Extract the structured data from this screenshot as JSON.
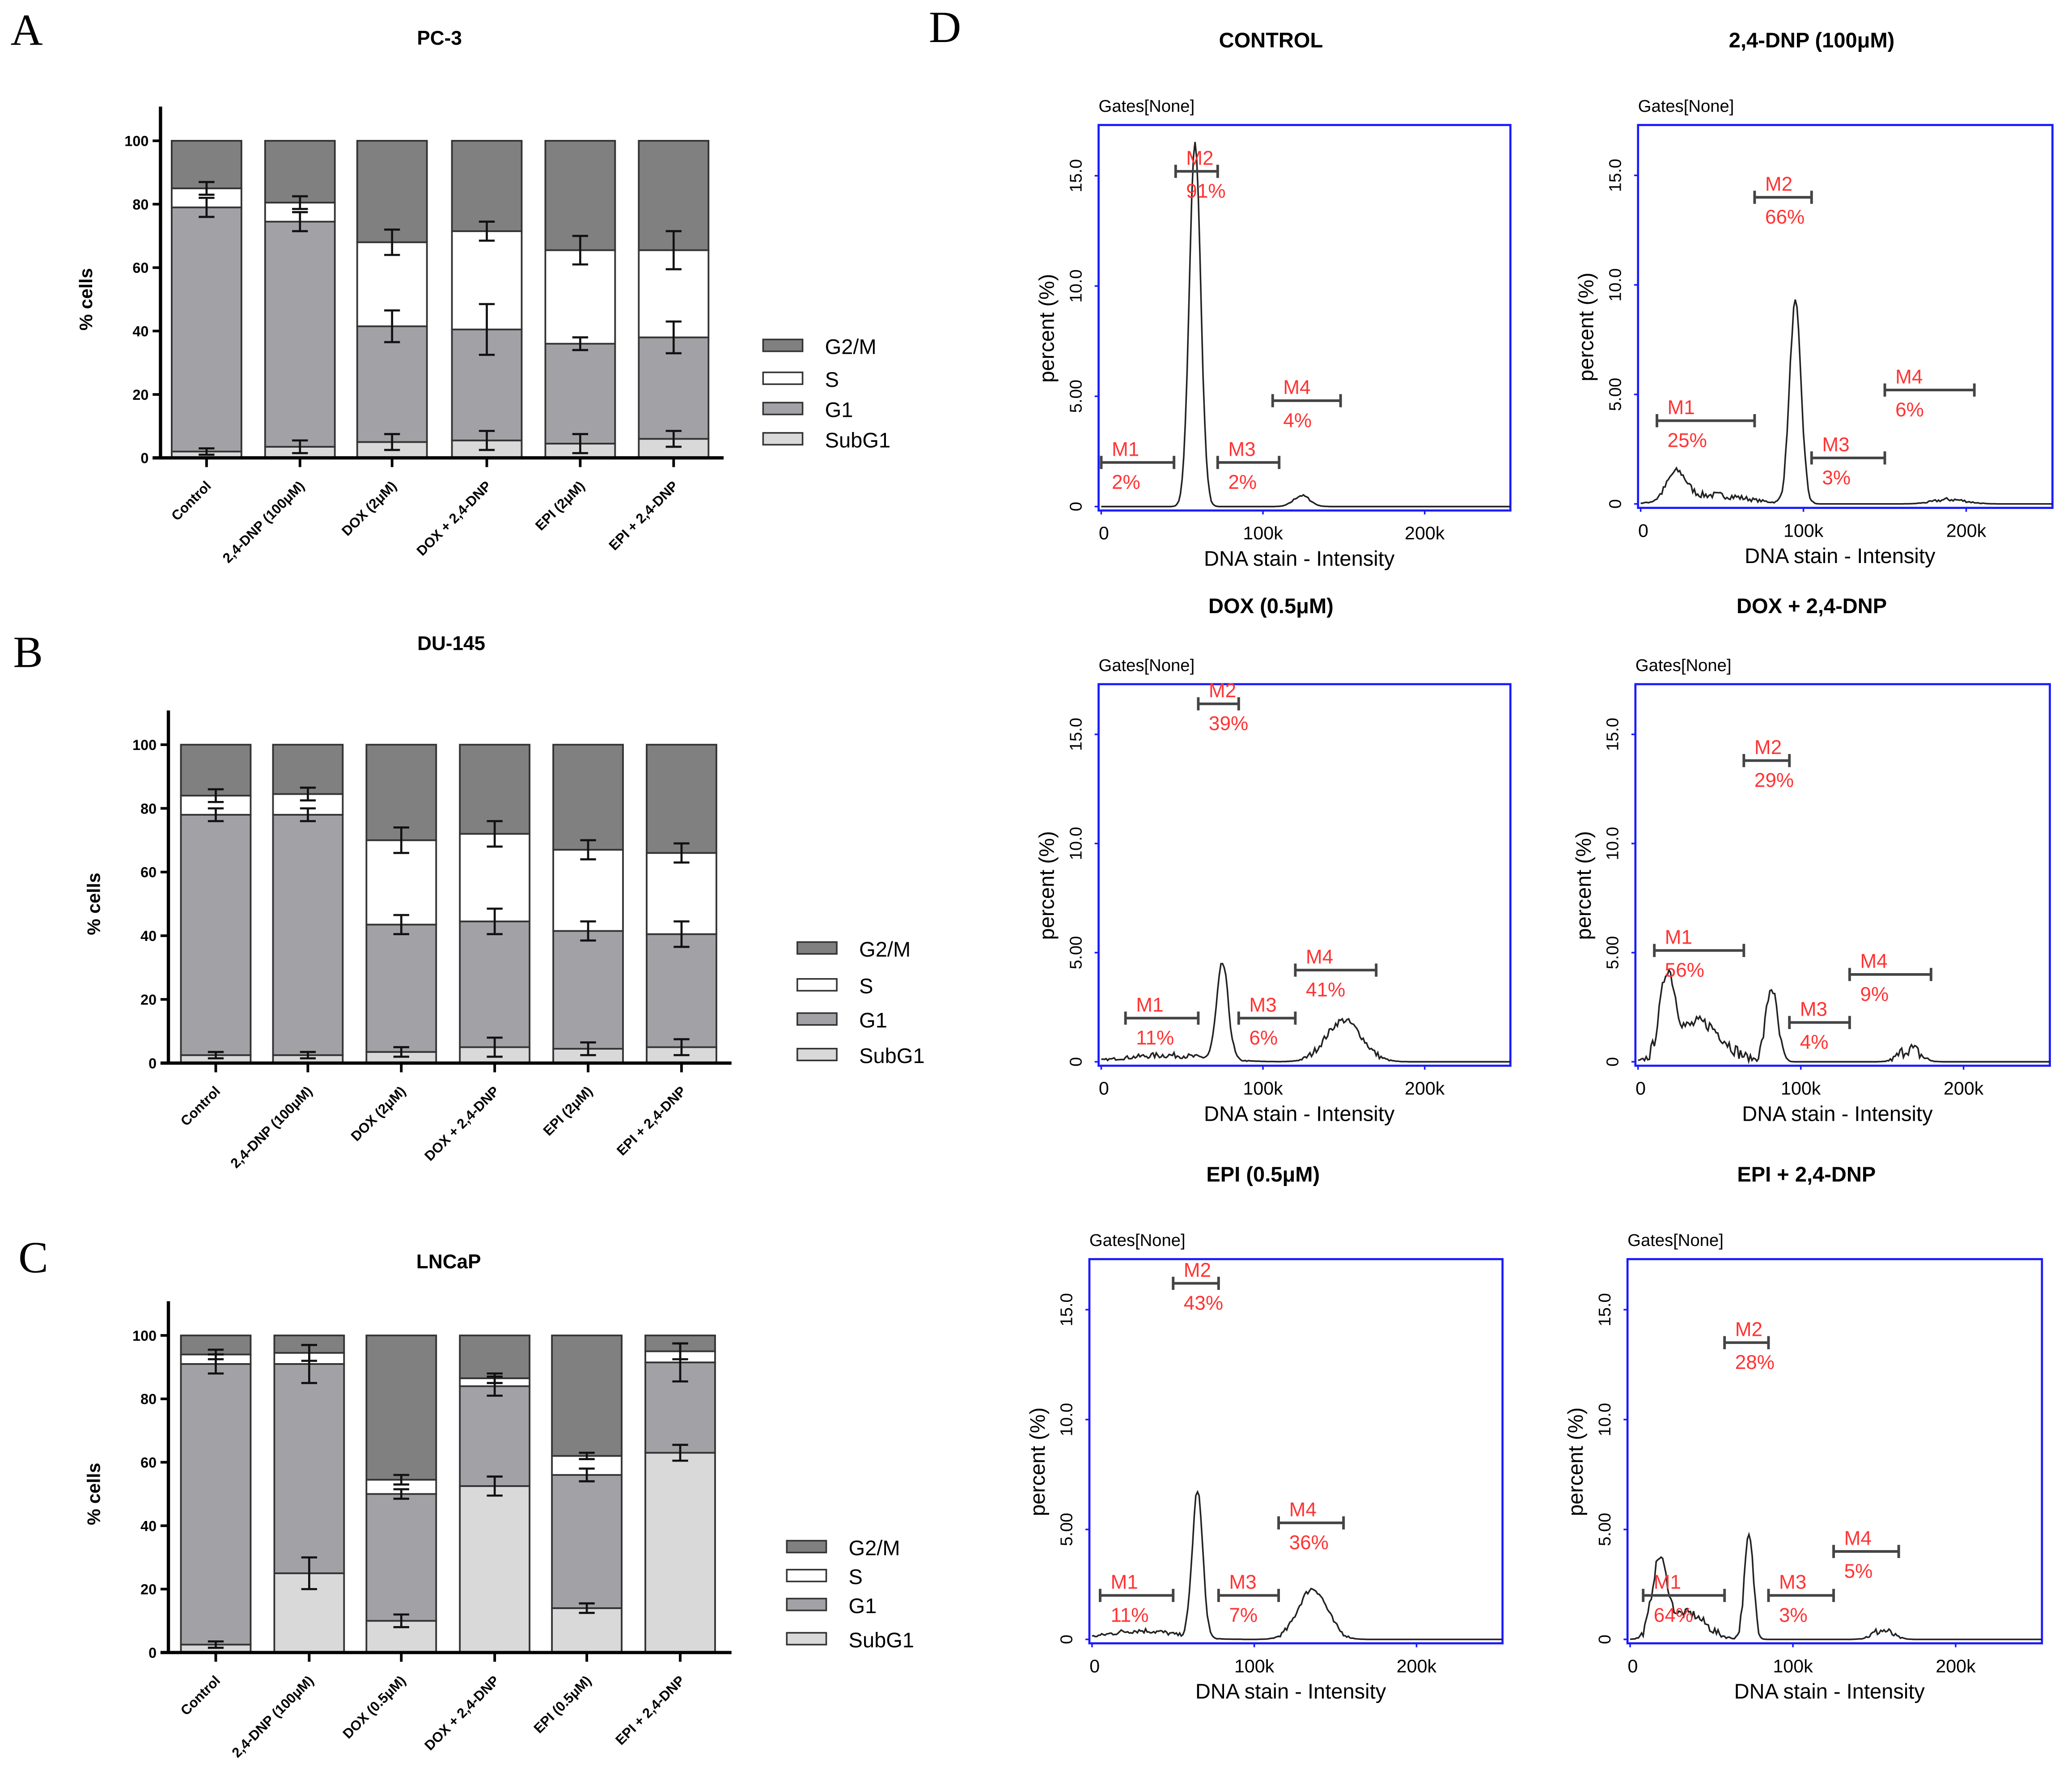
{
  "panel_letters": [
    "A",
    "B",
    "C",
    "D"
  ],
  "colors": {
    "G2/M": "#808080",
    "S": "#ffffff",
    "G1": "#a2a2a6",
    "SubG1": "#d9d9d9",
    "gate_text": "#ff3333",
    "frame": "#1a1aff"
  },
  "chart_data": [
    {
      "type": "bar",
      "stacked": true,
      "title": "PC-3",
      "ylabel": "% cells",
      "xlabel": "",
      "ylim": [
        0,
        100
      ],
      "yticks": [
        0,
        20,
        40,
        60,
        80,
        100
      ],
      "legend_position": "right",
      "legend": [
        "G2/M",
        "S",
        "G1",
        "SubG1"
      ],
      "categories": [
        "Control",
        "2,4-DNP (100μM)",
        "DOX (2μM)",
        "DOX + 2,4-DNP",
        "EPI (2μM)",
        "EPI + 2,4-DNP"
      ],
      "series": [
        {
          "name": "SubG1",
          "values": [
            2,
            3.5,
            5,
            5.5,
            4.5,
            6
          ],
          "errors": [
            1,
            2,
            2.5,
            3,
            3,
            2.5
          ]
        },
        {
          "name": "G1",
          "values": [
            77,
            71,
            36.5,
            35,
            31.5,
            32
          ],
          "errors": [
            3,
            3,
            5,
            8,
            2,
            5
          ]
        },
        {
          "name": "S",
          "values": [
            6,
            6,
            26.5,
            31,
            29.5,
            27.5
          ],
          "errors": [
            2,
            2,
            4,
            3,
            4.5,
            6
          ]
        },
        {
          "name": "G2/M",
          "values": [
            15,
            19.5,
            32,
            28.5,
            34.5,
            34.5
          ]
        }
      ]
    },
    {
      "type": "bar",
      "stacked": true,
      "title": "DU-145",
      "ylabel": "% cells",
      "xlabel": "",
      "ylim": [
        0,
        100
      ],
      "yticks": [
        0,
        20,
        40,
        60,
        80,
        100
      ],
      "legend_position": "right",
      "legend": [
        "G2/M",
        "S",
        "G1",
        "SubG1"
      ],
      "categories": [
        "Control",
        "2,4-DNP (100μM)",
        "DOX (2μM)",
        "DOX + 2,4-DNP",
        "EPI (2μM)",
        "EPI + 2,4-DNP"
      ],
      "series": [
        {
          "name": "SubG1",
          "values": [
            2.5,
            2.5,
            3.5,
            5,
            4.5,
            5
          ],
          "errors": [
            1,
            1,
            1.5,
            3,
            2,
            2.5
          ]
        },
        {
          "name": "G1",
          "values": [
            75.5,
            75.5,
            40,
            39.5,
            37,
            35.5
          ],
          "errors": [
            2,
            2,
            3,
            4,
            3,
            4
          ]
        },
        {
          "name": "S",
          "values": [
            6,
            6.5,
            26.5,
            27.5,
            25.5,
            25.5
          ],
          "errors": [
            2,
            2,
            4,
            4,
            3,
            3
          ]
        },
        {
          "name": "G2/M",
          "values": [
            16,
            15.5,
            30,
            28,
            33,
            34
          ]
        }
      ]
    },
    {
      "type": "bar",
      "stacked": true,
      "title": "LNCaP",
      "ylabel": "% cells",
      "xlabel": "",
      "ylim": [
        0,
        100
      ],
      "yticks": [
        0,
        20,
        40,
        60,
        80,
        100
      ],
      "legend_position": "right",
      "legend": [
        "G2/M",
        "S",
        "G1",
        "SubG1"
      ],
      "categories": [
        "Control",
        "2,4-DNP (100μM)",
        "DOX (0.5μM)",
        "DOX + 2,4-DNP",
        "EPI (0.5μM)",
        "EPI + 2,4-DNP"
      ],
      "series": [
        {
          "name": "SubG1",
          "values": [
            2.5,
            25,
            10,
            52.5,
            14,
            63
          ],
          "errors": [
            1,
            5,
            2,
            3,
            1.5,
            2.5
          ]
        },
        {
          "name": "G1",
          "values": [
            88.5,
            66,
            40,
            31.5,
            42,
            28.5
          ],
          "errors": [
            3,
            6,
            1.5,
            3,
            2,
            6
          ]
        },
        {
          "name": "S",
          "values": [
            3,
            3.5,
            4.5,
            2.5,
            6,
            3.5
          ],
          "errors": [
            1.5,
            2.5,
            1.5,
            1.5,
            1,
            2.5
          ]
        },
        {
          "name": "G2/M",
          "values": [
            6,
            5.5,
            45.5,
            13.5,
            38,
            5
          ]
        }
      ]
    },
    {
      "type": "line",
      "kind": "histogram-grid",
      "gates_header": "Gates[None]",
      "xlabel": "DNA stain - Intensity",
      "ylabel": "percent (%)",
      "xticks": [
        "0",
        "100k",
        "200k"
      ],
      "yticks": [
        "0",
        "5.00",
        "10.0",
        "15.0"
      ],
      "xlim_k": [
        0,
        253
      ],
      "ylim": [
        0,
        17.3
      ],
      "panels": [
        {
          "title": "CONTROL",
          "peaks": [
            [
              58,
              16.5,
              3.5
            ],
            [
              124,
              0.5,
              5
            ]
          ],
          "noise": 0.05,
          "gates": [
            {
              "name": "M1",
              "range_k": [
                0,
                45
              ],
              "level": 2.0,
              "pct": "2%"
            },
            {
              "name": "M2",
              "range_k": [
                46,
                72
              ],
              "level": 15.2,
              "pct": "91%"
            },
            {
              "name": "M3",
              "range_k": [
                72,
                110
              ],
              "level": 2.0,
              "pct": "2%"
            },
            {
              "name": "M4",
              "range_k": [
                106,
                148
              ],
              "level": 4.8,
              "pct": "4%"
            }
          ]
        },
        {
          "title": "2,4-DNP (100μM)",
          "peaks": [
            [
              22,
              1.3,
              6
            ],
            [
              45,
              0.4,
              20
            ],
            [
              95,
              9.2,
              3.5
            ],
            [
              190,
              0.2,
              10
            ]
          ],
          "noise": 0.15,
          "gates": [
            {
              "name": "M1",
              "range_k": [
                10,
                70
              ],
              "level": 3.8,
              "pct": "25%"
            },
            {
              "name": "M2",
              "range_k": [
                70,
                105
              ],
              "level": 14.0,
              "pct": "66%"
            },
            {
              "name": "M3",
              "range_k": [
                105,
                150
              ],
              "level": 2.1,
              "pct": "3%"
            },
            {
              "name": "M4",
              "range_k": [
                150,
                205
              ],
              "level": 5.2,
              "pct": "6%"
            }
          ]
        },
        {
          "title": "DOX (0.5μM)",
          "peaks": [
            [
              75,
              4.4,
              3.5
            ],
            [
              150,
              1.9,
              11
            ],
            [
              40,
              0.3,
              25
            ]
          ],
          "noise": 0.15,
          "gates": [
            {
              "name": "M1",
              "range_k": [
                15,
                60
              ],
              "level": 2.0,
              "pct": "11%"
            },
            {
              "name": "M2",
              "range_k": [
                60,
                85
              ],
              "level": 16.4,
              "pct": "39%"
            },
            {
              "name": "M3",
              "range_k": [
                85,
                120
              ],
              "level": 2.0,
              "pct": "6%"
            },
            {
              "name": "M4",
              "range_k": [
                120,
                170
              ],
              "level": 4.2,
              "pct": "41%"
            }
          ]
        },
        {
          "title": "DOX + 2,4-DNP",
          "peaks": [
            [
              18,
              3.6,
              4.5
            ],
            [
              38,
              1.8,
              14
            ],
            [
              82,
              3.4,
              3.5
            ],
            [
              167,
              0.6,
              6
            ]
          ],
          "noise": 0.3,
          "gates": [
            {
              "name": "M1",
              "range_k": [
                10,
                65
              ],
              "level": 5.1,
              "pct": "56%"
            },
            {
              "name": "M2",
              "range_k": [
                65,
                93
              ],
              "level": 13.8,
              "pct": "29%"
            },
            {
              "name": "M3",
              "range_k": [
                93,
                130
              ],
              "level": 1.8,
              "pct": "4%"
            },
            {
              "name": "M4",
              "range_k": [
                130,
                180
              ],
              "level": 4.0,
              "pct": "9%"
            }
          ]
        },
        {
          "title": "EPI (0.5μM)",
          "peaks": [
            [
              65,
              6.7,
              3.2
            ],
            [
              136,
              2.3,
              9
            ],
            [
              30,
              0.4,
              20
            ]
          ],
          "noise": 0.12,
          "gates": [
            {
              "name": "M1",
              "range_k": [
                5,
                50
              ],
              "level": 2.0,
              "pct": "11%"
            },
            {
              "name": "M2",
              "range_k": [
                50,
                78
              ],
              "level": 16.2,
              "pct": "43%"
            },
            {
              "name": "M3",
              "range_k": [
                78,
                115
              ],
              "level": 2.0,
              "pct": "7%"
            },
            {
              "name": "M4",
              "range_k": [
                115,
                155
              ],
              "level": 5.3,
              "pct": "36%"
            }
          ]
        },
        {
          "title": "EPI + 2,4-DNP",
          "peaks": [
            [
              18,
              3.4,
              4.5
            ],
            [
              35,
              1.2,
              11
            ],
            [
              73,
              4.7,
              2.8
            ],
            [
              155,
              0.4,
              6
            ]
          ],
          "noise": 0.2,
          "gates": [
            {
              "name": "M1",
              "range_k": [
                8,
                58
              ],
              "level": 2.0,
              "pct": "64%"
            },
            {
              "name": "M2",
              "range_k": [
                58,
                85
              ],
              "level": 13.5,
              "pct": "28%"
            },
            {
              "name": "M3",
              "range_k": [
                85,
                125
              ],
              "level": 2.0,
              "pct": "3%"
            },
            {
              "name": "M4",
              "range_k": [
                125,
                165
              ],
              "level": 4.0,
              "pct": "5%"
            }
          ]
        }
      ]
    }
  ]
}
